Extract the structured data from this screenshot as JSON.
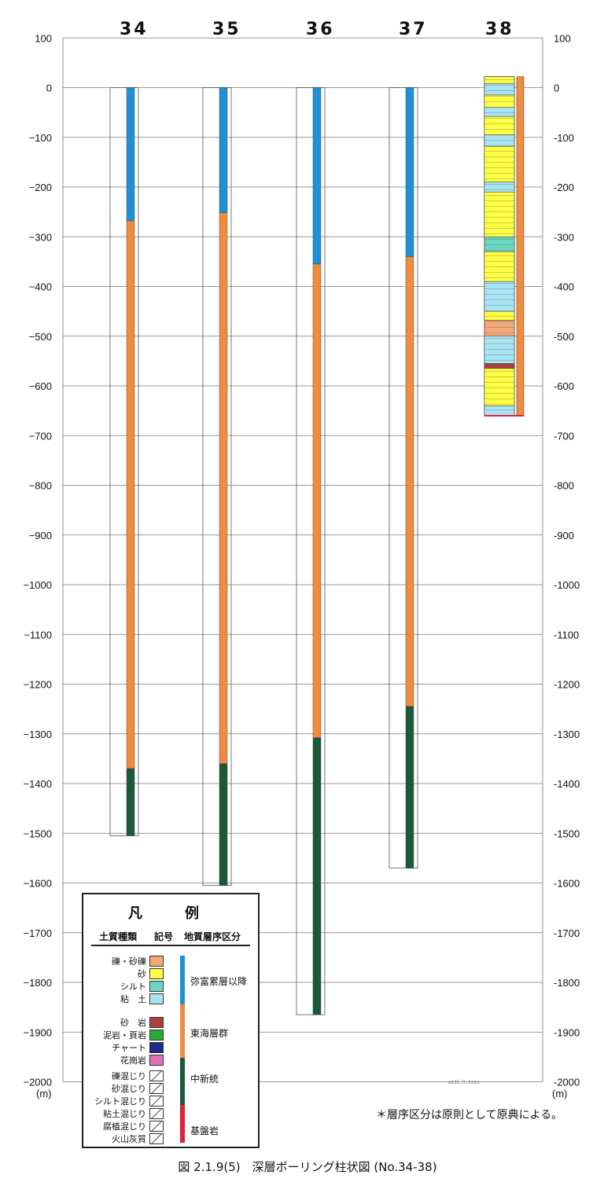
{
  "diagram": {
    "y_axis": {
      "ticks": [
        100,
        0,
        -100,
        -200,
        -300,
        -400,
        -500,
        -600,
        -700,
        -800,
        -900,
        -1000,
        -1100,
        -1200,
        -1300,
        -1400,
        -1500,
        -1600,
        -1700,
        -1800,
        -1900,
        -2000
      ],
      "tick_labels": [
        "100",
        "0",
        "−100",
        "−200",
        "−300",
        "−400",
        "−500",
        "−600",
        "−700",
        "−800",
        "−900",
        "−1000",
        "−1100",
        "−1200",
        "−1300",
        "−1400",
        "−1500",
        "−1600",
        "−1700",
        "−1800",
        "−1900",
        "−2000"
      ],
      "tick_labels_right": [
        "100",
        "0",
        "-100",
        "-200",
        "-300",
        "-400",
        "-500",
        "-600",
        "-700",
        "-800",
        "-900",
        "-1000",
        "-1100",
        "-1200",
        "-1300",
        "-1400",
        "-1500",
        "-1600",
        "-1700",
        "-1800",
        "-1900",
        "-2000"
      ],
      "unit": "(m)"
    },
    "boreholes": [
      {
        "id": "34",
        "total_depth": -1505,
        "segments": [
          {
            "from": 0,
            "to": -268,
            "group": "yatomi"
          },
          {
            "from": -268,
            "to": -1370,
            "group": "tokai"
          },
          {
            "from": -1370,
            "to": -1505,
            "group": "miocene"
          }
        ]
      },
      {
        "id": "35",
        "total_depth": -1605,
        "segments": [
          {
            "from": 0,
            "to": -252,
            "group": "yatomi"
          },
          {
            "from": -252,
            "to": -1360,
            "group": "tokai"
          },
          {
            "from": -1360,
            "to": -1605,
            "group": "miocene"
          }
        ]
      },
      {
        "id": "36",
        "total_depth": -1865,
        "segments": [
          {
            "from": 0,
            "to": -355,
            "group": "yatomi"
          },
          {
            "from": -355,
            "to": -1308,
            "group": "tokai"
          },
          {
            "from": -1308,
            "to": -1865,
            "group": "miocene"
          }
        ]
      },
      {
        "id": "37",
        "total_depth": -1570,
        "segments": [
          {
            "from": 0,
            "to": -340,
            "group": "yatomi"
          },
          {
            "from": -340,
            "to": -1245,
            "group": "tokai"
          },
          {
            "from": -1245,
            "to": -1570,
            "group": "miocene"
          }
        ]
      },
      {
        "id": "38",
        "top": 22,
        "total_depth": -660,
        "segments": [
          {
            "from": 22,
            "to": -660,
            "group": "tokai"
          }
        ],
        "detailed_log": true
      }
    ],
    "detailed_log_38": [
      {
        "from": 22,
        "to": 8,
        "soil": "sand"
      },
      {
        "from": 8,
        "to": -15,
        "soil": "clay"
      },
      {
        "from": -15,
        "to": -40,
        "soil": "sand"
      },
      {
        "from": -40,
        "to": -58,
        "soil": "clay"
      },
      {
        "from": -58,
        "to": -95,
        "soil": "sand"
      },
      {
        "from": -95,
        "to": -118,
        "soil": "clay"
      },
      {
        "from": -118,
        "to": -190,
        "soil": "sand"
      },
      {
        "from": -190,
        "to": -210,
        "soil": "clay"
      },
      {
        "from": -210,
        "to": -300,
        "soil": "sand"
      },
      {
        "from": -300,
        "to": -330,
        "soil": "silt"
      },
      {
        "from": -330,
        "to": -390,
        "soil": "sand"
      },
      {
        "from": -390,
        "to": -450,
        "soil": "clay"
      },
      {
        "from": -450,
        "to": -468,
        "soil": "sand"
      },
      {
        "from": -468,
        "to": -500,
        "soil": "gravel"
      },
      {
        "from": -500,
        "to": -555,
        "soil": "clay"
      },
      {
        "from": -555,
        "to": -565,
        "soil": "sandstone"
      },
      {
        "from": -565,
        "to": -640,
        "soil": "sand"
      },
      {
        "from": -640,
        "to": -660,
        "soil": "clay"
      }
    ]
  },
  "colors": {
    "yatomi": "#1e90d6",
    "tokai": "#f08c3c",
    "miocene": "#1a5a3a",
    "basement": "#e0203c",
    "gravel": "#f4a878",
    "sand": "#ffff44",
    "silt": "#6ad8c0",
    "clay": "#a8e4f4",
    "sandstone": "#b04040",
    "mudstone": "#2aa838",
    "chert": "#1c2a8a",
    "granite": "#e070b8"
  },
  "legend": {
    "title": "凡　例",
    "col_soil": "土質種類",
    "col_symbol": "記号",
    "col_group": "地質層序区分",
    "soil_items": [
      {
        "label": "礫・砂礫",
        "color_key": "gravel"
      },
      {
        "label": "砂",
        "color_key": "sand"
      },
      {
        "label": "シルト",
        "color_key": "silt"
      },
      {
        "label": "粘　土",
        "color_key": "clay"
      },
      {
        "label": "砂　岩",
        "color_key": "sandstone"
      },
      {
        "label": "泥岩・頁岩",
        "color_key": "mudstone"
      },
      {
        "label": "チャート",
        "color_key": "chert"
      },
      {
        "label": "花崗岩",
        "color_key": "granite"
      },
      {
        "label": "礫混じり",
        "color_key": "mixed"
      },
      {
        "label": "砂混じり",
        "color_key": "mixed"
      },
      {
        "label": "シルト混じり",
        "color_key": "mixed"
      },
      {
        "label": "粘土混じり",
        "color_key": "mixed"
      },
      {
        "label": "腐植混じり",
        "color_key": "mixed"
      },
      {
        "label": "火山灰質",
        "color_key": "mixed"
      }
    ],
    "group_items": [
      {
        "label": "弥富累層以降",
        "color_key": "yatomi"
      },
      {
        "label": "東海層群",
        "color_key": "tokai"
      },
      {
        "label": "中新統",
        "color_key": "miocene"
      },
      {
        "label": "基盤岩",
        "color_key": "basement"
      }
    ]
  },
  "note": "＊層序区分は原則として原典による。",
  "caption": "図 2.1.9(5)　深層ボーリング柱状図 (No.34-38)",
  "file_mark": "a115_5.tiks"
}
